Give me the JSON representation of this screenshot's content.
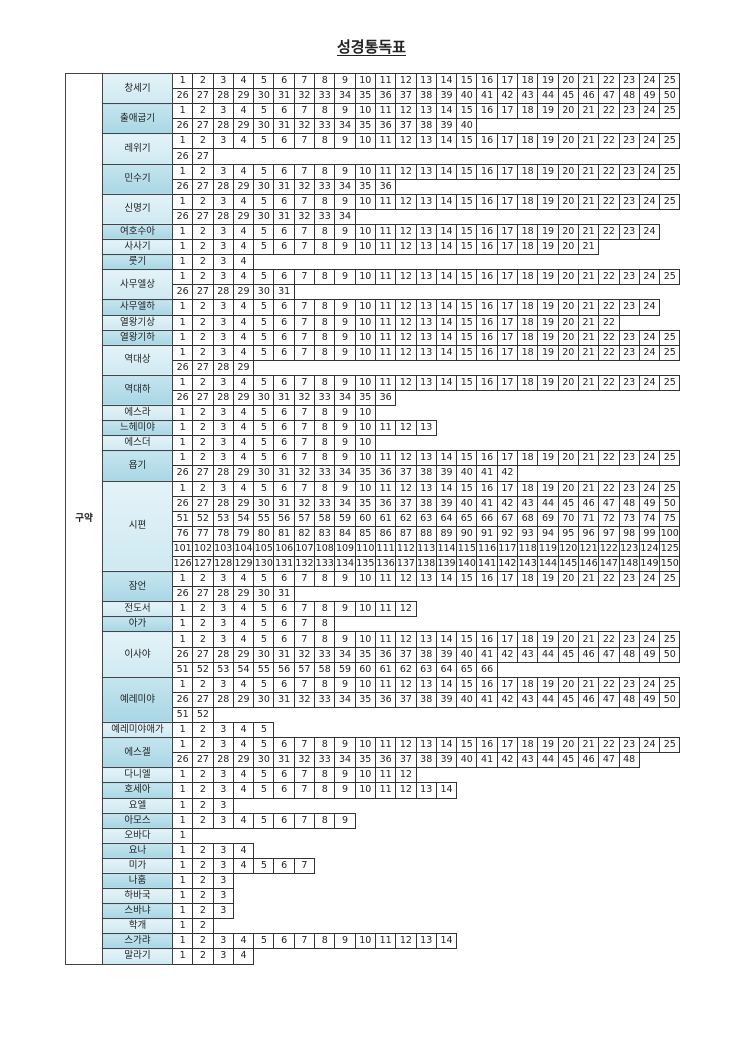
{
  "title": "성경통독표",
  "section": "구약",
  "per_row": 25,
  "colors": {
    "book_light": "#d9eef5",
    "book_dark": "#b4dce8",
    "border": "#333333"
  },
  "books": [
    {
      "name": "창세기",
      "chapters": 50
    },
    {
      "name": "출애굽기",
      "chapters": 40
    },
    {
      "name": "레위기",
      "chapters": 27
    },
    {
      "name": "민수기",
      "chapters": 36
    },
    {
      "name": "신명기",
      "chapters": 34
    },
    {
      "name": "여호수아",
      "chapters": 24
    },
    {
      "name": "사사기",
      "chapters": 21
    },
    {
      "name": "룻기",
      "chapters": 4
    },
    {
      "name": "사무엘상",
      "chapters": 31
    },
    {
      "name": "사무엘하",
      "chapters": 24
    },
    {
      "name": "열왕기상",
      "chapters": 22
    },
    {
      "name": "열왕기하",
      "chapters": 25
    },
    {
      "name": "역대상",
      "chapters": 29
    },
    {
      "name": "역대하",
      "chapters": 36
    },
    {
      "name": "에스라",
      "chapters": 10
    },
    {
      "name": "느헤미야",
      "chapters": 13
    },
    {
      "name": "에스더",
      "chapters": 10
    },
    {
      "name": "욥기",
      "chapters": 42
    },
    {
      "name": "시편",
      "chapters": 150
    },
    {
      "name": "잠언",
      "chapters": 31
    },
    {
      "name": "전도서",
      "chapters": 12
    },
    {
      "name": "아가",
      "chapters": 8
    },
    {
      "name": "이사야",
      "chapters": 66
    },
    {
      "name": "예레미야",
      "chapters": 52
    },
    {
      "name": "예레미야애가",
      "chapters": 5
    },
    {
      "name": "에스겔",
      "chapters": 48
    },
    {
      "name": "다니엘",
      "chapters": 12
    },
    {
      "name": "호세아",
      "chapters": 14
    },
    {
      "name": "요엘",
      "chapters": 3
    },
    {
      "name": "아모스",
      "chapters": 9
    },
    {
      "name": "오바다",
      "chapters": 1
    },
    {
      "name": "요나",
      "chapters": 4
    },
    {
      "name": "미가",
      "chapters": 7
    },
    {
      "name": "나훔",
      "chapters": 3
    },
    {
      "name": "하바국",
      "chapters": 3
    },
    {
      "name": "스바냐",
      "chapters": 3
    },
    {
      "name": "학개",
      "chapters": 2
    },
    {
      "name": "스가랴",
      "chapters": 14
    },
    {
      "name": "말라기",
      "chapters": 4
    }
  ]
}
